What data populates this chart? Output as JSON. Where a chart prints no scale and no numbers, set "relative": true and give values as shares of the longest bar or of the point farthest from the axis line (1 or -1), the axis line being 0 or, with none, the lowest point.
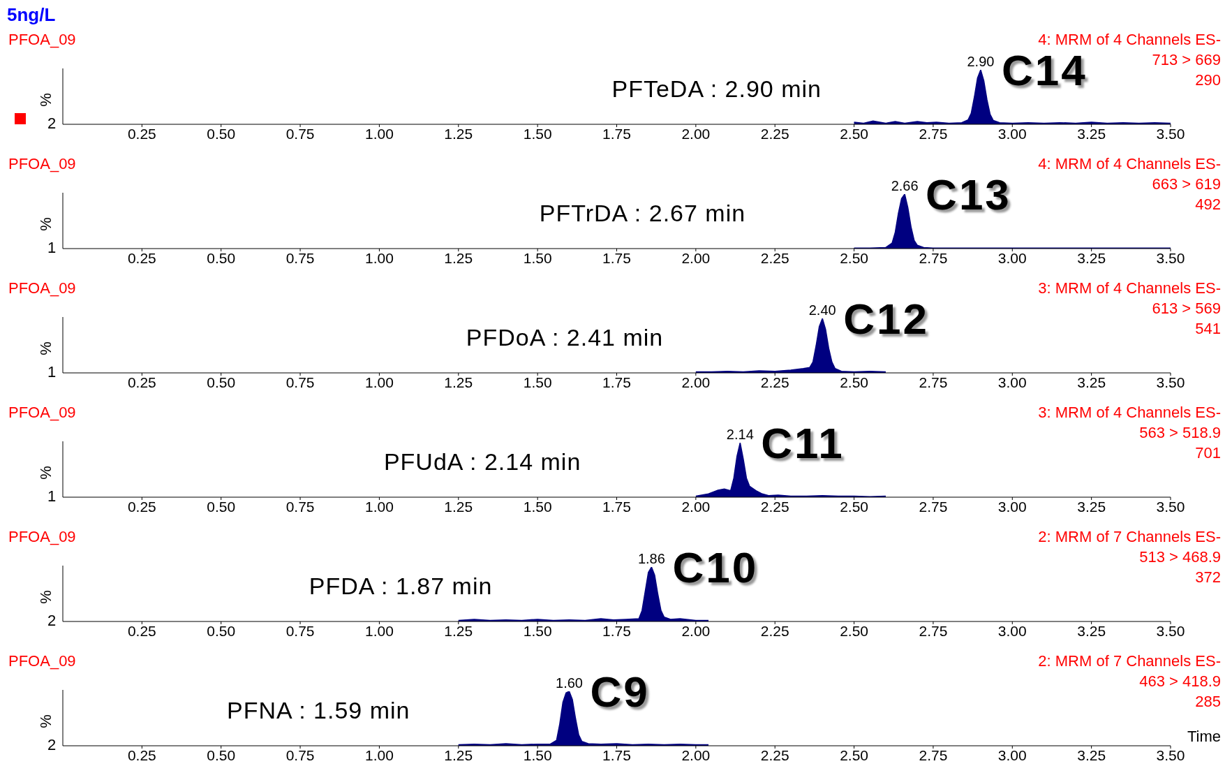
{
  "chart_data": [
    {
      "type": "area",
      "title": "5ng/L",
      "ylabel": "%",
      "relative": true,
      "xlim": [
        0,
        3.5
      ],
      "xticks": [
        0.25,
        {
          "value": 0.5,
          "label": "0.50"
        },
        0.75,
        {
          "value": 1,
          "label": "1.00"
        },
        1.25,
        {
          "value": 1.5,
          "label": "1.50"
        },
        1.75,
        {
          "value": 2,
          "label": "2.00"
        },
        2.25,
        {
          "value": 2.5,
          "label": "2.50"
        },
        2.75,
        {
          "value": 3,
          "label": "3.00"
        },
        3.25,
        {
          "value": 3.5,
          "label": "3.50"
        }
      ],
      "series": [
        {
          "color": "#000080",
          "x": [
            2.5,
            2.53,
            2.56,
            2.6,
            2.63,
            2.66,
            2.7,
            2.73,
            2.76,
            2.8,
            2.84,
            2.86,
            2.87,
            2.88,
            2.89,
            2.9,
            2.91,
            2.92,
            2.93,
            2.94,
            2.96,
            3.0,
            3.05,
            3.1,
            3.15,
            3.2,
            3.25,
            3.3,
            3.35,
            3.4,
            3.45,
            3.5
          ],
          "values": [
            0.04,
            0.02,
            0.06,
            0.02,
            0.05,
            0.02,
            0.05,
            0.03,
            0.04,
            0.02,
            0.03,
            0.08,
            0.2,
            0.5,
            0.85,
            1,
            0.8,
            0.45,
            0.18,
            0.07,
            0.03,
            0.02,
            0.03,
            0.02,
            0.03,
            0.02,
            0.04,
            0.02,
            0.03,
            0.02,
            0.03,
            0.02
          ]
        }
      ],
      "annotations": [
        "PFOA_09",
        "4: MRM of 4 Channels ES-",
        "713 > 669",
        "290",
        "PFTeDA : 2.90 min",
        "C14",
        "2",
        {
          "text": "2.90",
          "x": 2.9,
          "y": 1
        }
      ]
    },
    {
      "type": "area",
      "ylabel": "%",
      "relative": true,
      "xlim": [
        0,
        3.5
      ],
      "xticks": [
        0.25,
        {
          "value": 0.5,
          "label": "0.50"
        },
        0.75,
        {
          "value": 1,
          "label": "1.00"
        },
        1.25,
        {
          "value": 1.5,
          "label": "1.50"
        },
        1.75,
        {
          "value": 2,
          "label": "2.00"
        },
        2.25,
        {
          "value": 2.5,
          "label": "2.50"
        },
        2.75,
        {
          "value": 3,
          "label": "3.00"
        },
        3.25,
        {
          "value": 3.5,
          "label": "3.50"
        }
      ],
      "series": [
        {
          "color": "#000080",
          "x": [
            2.5,
            2.55,
            2.6,
            2.62,
            2.63,
            2.64,
            2.65,
            2.66,
            2.67,
            2.68,
            2.69,
            2.7,
            2.72,
            2.75,
            2.8,
            2.9,
            3.0,
            3.1,
            3.2,
            3.3,
            3.4,
            3.5
          ],
          "values": [
            0.01,
            0.01,
            0.02,
            0.1,
            0.3,
            0.65,
            0.92,
            1,
            0.75,
            0.4,
            0.15,
            0.06,
            0.02,
            0.01,
            0.01,
            0.01,
            0.01,
            0.01,
            0.01,
            0.01,
            0.01,
            0.01
          ]
        }
      ],
      "annotations": [
        "PFOA_09",
        "4: MRM of 4 Channels ES-",
        "663 > 619",
        "492",
        "PFTrDA : 2.67 min",
        "C13",
        "1",
        {
          "text": "2.66",
          "x": 2.66,
          "y": 1
        }
      ]
    },
    {
      "type": "area",
      "ylabel": "%",
      "relative": true,
      "xlim": [
        0,
        3.5
      ],
      "xticks": [
        0.25,
        {
          "value": 0.5,
          "label": "0.50"
        },
        0.75,
        {
          "value": 1,
          "label": "1.00"
        },
        1.25,
        {
          "value": 1.5,
          "label": "1.50"
        },
        1.75,
        {
          "value": 2,
          "label": "2.00"
        },
        2.25,
        {
          "value": 2.5,
          "label": "2.50"
        },
        2.75,
        {
          "value": 3,
          "label": "3.00"
        },
        3.25,
        {
          "value": 3.5,
          "label": "3.50"
        }
      ],
      "series": [
        {
          "color": "#000080",
          "x": [
            2.0,
            2.05,
            2.1,
            2.15,
            2.2,
            2.25,
            2.3,
            2.34,
            2.36,
            2.37,
            2.38,
            2.39,
            2.4,
            2.41,
            2.42,
            2.43,
            2.44,
            2.46,
            2.5,
            2.55,
            2.6
          ],
          "values": [
            0.02,
            0.02,
            0.03,
            0.02,
            0.04,
            0.03,
            0.05,
            0.08,
            0.1,
            0.2,
            0.5,
            0.85,
            1,
            0.8,
            0.45,
            0.2,
            0.08,
            0.03,
            0.02,
            0.03,
            0.02
          ]
        }
      ],
      "annotations": [
        "PFOA_09",
        "3: MRM of 4 Channels ES-",
        "613 > 569",
        "541",
        "PFDoA : 2.41 min",
        "C12",
        "1",
        {
          "text": "2.40",
          "x": 2.4,
          "y": 1
        }
      ]
    },
    {
      "type": "area",
      "ylabel": "%",
      "relative": true,
      "xlim": [
        0,
        3.5
      ],
      "xticks": [
        0.25,
        {
          "value": 0.5,
          "label": "0.50"
        },
        0.75,
        {
          "value": 1,
          "label": "1.00"
        },
        1.25,
        {
          "value": 1.5,
          "label": "1.50"
        },
        1.75,
        {
          "value": 2,
          "label": "2.00"
        },
        2.25,
        {
          "value": 2.5,
          "label": "2.50"
        },
        2.75,
        {
          "value": 3,
          "label": "3.00"
        },
        3.25,
        {
          "value": 3.5,
          "label": "3.50"
        }
      ],
      "series": [
        {
          "color": "#000080",
          "x": [
            2.0,
            2.04,
            2.07,
            2.09,
            2.11,
            2.12,
            2.13,
            2.14,
            2.15,
            2.16,
            2.17,
            2.19,
            2.21,
            2.23,
            2.26,
            2.3,
            2.35,
            2.4,
            2.45,
            2.5,
            2.55,
            2.6
          ],
          "values": [
            0.02,
            0.06,
            0.13,
            0.15,
            0.12,
            0.35,
            0.75,
            1,
            0.7,
            0.35,
            0.2,
            0.12,
            0.06,
            0.03,
            0.04,
            0.02,
            0.02,
            0.03,
            0.02,
            0.02,
            0.01,
            0.02
          ]
        }
      ],
      "annotations": [
        "PFOA_09",
        "3: MRM of 4 Channels ES-",
        "563 > 518.9",
        "701",
        "PFUdA : 2.14 min",
        "C11",
        "1",
        {
          "text": "2.14",
          "x": 2.14,
          "y": 1
        }
      ]
    },
    {
      "type": "area",
      "ylabel": "%",
      "relative": true,
      "xlim": [
        0,
        3.5
      ],
      "xticks": [
        0.25,
        {
          "value": 0.5,
          "label": "0.50"
        },
        0.75,
        {
          "value": 1,
          "label": "1.00"
        },
        1.25,
        {
          "value": 1.5,
          "label": "1.50"
        },
        1.75,
        {
          "value": 2,
          "label": "2.00"
        },
        2.25,
        {
          "value": 2.5,
          "label": "2.50"
        },
        2.75,
        {
          "value": 3,
          "label": "3.00"
        },
        3.25,
        {
          "value": 3.5,
          "label": "3.50"
        }
      ],
      "series": [
        {
          "color": "#000080",
          "x": [
            1.25,
            1.3,
            1.35,
            1.4,
            1.45,
            1.5,
            1.55,
            1.6,
            1.65,
            1.7,
            1.74,
            1.78,
            1.82,
            1.83,
            1.84,
            1.85,
            1.86,
            1.87,
            1.88,
            1.89,
            1.9,
            1.92,
            1.95,
            2.0,
            2.04
          ],
          "values": [
            0.02,
            0.04,
            0.02,
            0.03,
            0.02,
            0.04,
            0.02,
            0.03,
            0.02,
            0.05,
            0.03,
            0.04,
            0.05,
            0.2,
            0.55,
            0.9,
            1,
            0.85,
            0.5,
            0.2,
            0.08,
            0.04,
            0.05,
            0.02,
            0.02
          ]
        }
      ],
      "annotations": [
        "PFOA_09",
        "2: MRM of 7 Channels ES-",
        "513 > 468.9",
        "372",
        "PFDA : 1.87 min",
        "C10",
        "2",
        {
          "text": "1.86",
          "x": 1.86,
          "y": 1
        }
      ]
    },
    {
      "type": "area",
      "ylabel": "%",
      "xlabel": "Time",
      "relative": true,
      "xlim": [
        0,
        3.5
      ],
      "xticks": [
        0.25,
        {
          "value": 0.5,
          "label": "0.50"
        },
        0.75,
        {
          "value": 1,
          "label": "1.00"
        },
        1.25,
        {
          "value": 1.5,
          "label": "1.50"
        },
        1.75,
        {
          "value": 2,
          "label": "2.00"
        },
        2.25,
        {
          "value": 2.5,
          "label": "2.50"
        },
        2.75,
        {
          "value": 3,
          "label": "3.00"
        },
        3.25,
        {
          "value": 3.5,
          "label": "3.50"
        }
      ],
      "series": [
        {
          "color": "#000080",
          "x": [
            1.25,
            1.3,
            1.35,
            1.4,
            1.45,
            1.5,
            1.54,
            1.56,
            1.57,
            1.58,
            1.59,
            1.6,
            1.61,
            1.62,
            1.63,
            1.64,
            1.66,
            1.7,
            1.75,
            1.8,
            1.85,
            1.9,
            1.95,
            2.0,
            2.04
          ],
          "values": [
            0.02,
            0.03,
            0.02,
            0.04,
            0.02,
            0.03,
            0.03,
            0.1,
            0.4,
            0.8,
            0.97,
            1,
            0.85,
            0.5,
            0.2,
            0.08,
            0.04,
            0.03,
            0.04,
            0.02,
            0.03,
            0.02,
            0.03,
            0.02,
            0.02
          ]
        }
      ],
      "annotations": [
        "PFOA_09",
        "2: MRM of 7 Channels ES-",
        "463 > 418.9",
        "285",
        "PFNA : 1.59 min",
        "C9",
        "2",
        {
          "text": "1.60",
          "x": 1.6,
          "y": 1
        }
      ]
    }
  ]
}
